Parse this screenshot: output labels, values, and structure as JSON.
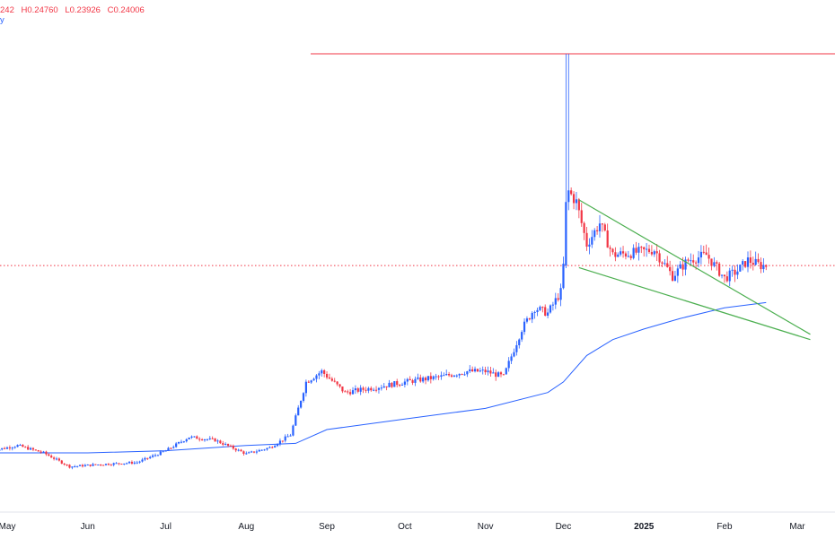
{
  "legend": {
    "open_fragment": "242",
    "high": "H0.24760",
    "low": "L0.23926",
    "close": "C0.24006",
    "ma_fragment": "y"
  },
  "colors": {
    "up": "#2962ff",
    "down": "#f23645",
    "ma": "#2962ff",
    "trendline": "#4caf50",
    "level": "#f23645",
    "price_line": "#f23645"
  },
  "chart_data": {
    "type": "candlestick",
    "ylim": [
      0.0,
      0.5
    ],
    "x_ticks": [
      {
        "label": "May",
        "date": "2024-05-01"
      },
      {
        "label": "Jun",
        "date": "2024-06-01"
      },
      {
        "label": "Jul",
        "date": "2024-07-01"
      },
      {
        "label": "Aug",
        "date": "2024-08-01"
      },
      {
        "label": "Sep",
        "date": "2024-09-01"
      },
      {
        "label": "Oct",
        "date": "2024-10-01"
      },
      {
        "label": "Nov",
        "date": "2024-11-01"
      },
      {
        "label": "Dec",
        "date": "2024-12-01"
      },
      {
        "label": "2025",
        "date": "2025-01-01",
        "bold": true
      },
      {
        "label": "Feb",
        "date": "2025-02-01"
      },
      {
        "label": "Mar",
        "date": "2025-03-01"
      }
    ],
    "horizontal_level": 0.44,
    "last_close": 0.24,
    "price_close_anchors": [
      [
        "2024-04-25",
        0.065
      ],
      [
        "2024-05-05",
        0.07
      ],
      [
        "2024-05-15",
        0.063
      ],
      [
        "2024-05-25",
        0.05
      ],
      [
        "2024-06-05",
        0.052
      ],
      [
        "2024-06-20",
        0.054
      ],
      [
        "2024-07-01",
        0.065
      ],
      [
        "2024-07-10",
        0.078
      ],
      [
        "2024-07-20",
        0.075
      ],
      [
        "2024-08-01",
        0.062
      ],
      [
        "2024-08-10",
        0.068
      ],
      [
        "2024-08-18",
        0.08
      ],
      [
        "2024-08-24",
        0.13
      ],
      [
        "2024-08-30",
        0.14
      ],
      [
        "2024-09-08",
        0.12
      ],
      [
        "2024-09-20",
        0.125
      ],
      [
        "2024-10-01",
        0.13
      ],
      [
        "2024-10-15",
        0.135
      ],
      [
        "2024-10-25",
        0.14
      ],
      [
        "2024-11-01",
        0.14
      ],
      [
        "2024-11-08",
        0.135
      ],
      [
        "2024-11-15",
        0.18
      ],
      [
        "2024-11-20",
        0.2
      ],
      [
        "2024-11-25",
        0.195
      ],
      [
        "2024-11-30",
        0.215
      ],
      [
        "2024-12-01",
        0.24
      ],
      [
        "2024-12-02",
        0.41
      ],
      [
        "2024-12-03",
        0.31
      ],
      [
        "2024-12-06",
        0.3
      ],
      [
        "2024-12-10",
        0.26
      ],
      [
        "2024-12-15",
        0.28
      ],
      [
        "2024-12-20",
        0.25
      ],
      [
        "2024-12-28",
        0.252
      ],
      [
        "2025-01-05",
        0.255
      ],
      [
        "2025-01-12",
        0.23
      ],
      [
        "2025-01-18",
        0.245
      ],
      [
        "2025-01-25",
        0.25
      ],
      [
        "2025-02-01",
        0.228
      ],
      [
        "2025-02-06",
        0.235
      ],
      [
        "2025-02-10",
        0.245
      ],
      [
        "2025-02-15",
        0.24
      ],
      [
        "2025-02-17",
        0.24
      ]
    ],
    "moving_average": [
      [
        "2024-04-25",
        0.063
      ],
      [
        "2024-06-01",
        0.063
      ],
      [
        "2024-07-01",
        0.065
      ],
      [
        "2024-08-01",
        0.07
      ],
      [
        "2024-08-20",
        0.072
      ],
      [
        "2024-09-01",
        0.085
      ],
      [
        "2024-10-01",
        0.095
      ],
      [
        "2024-11-01",
        0.105
      ],
      [
        "2024-11-25",
        0.12
      ],
      [
        "2024-12-01",
        0.13
      ],
      [
        "2024-12-10",
        0.155
      ],
      [
        "2024-12-20",
        0.17
      ],
      [
        "2025-01-01",
        0.18
      ],
      [
        "2025-01-15",
        0.19
      ],
      [
        "2025-02-01",
        0.2
      ],
      [
        "2025-02-17",
        0.205
      ]
    ],
    "trendlines": [
      {
        "name": "upper",
        "points": [
          [
            "2024-12-07",
            0.302
          ],
          [
            "2025-03-06",
            0.175
          ]
        ]
      },
      {
        "name": "lower",
        "points": [
          [
            "2024-12-07",
            0.238
          ],
          [
            "2025-03-06",
            0.17
          ]
        ]
      }
    ]
  }
}
